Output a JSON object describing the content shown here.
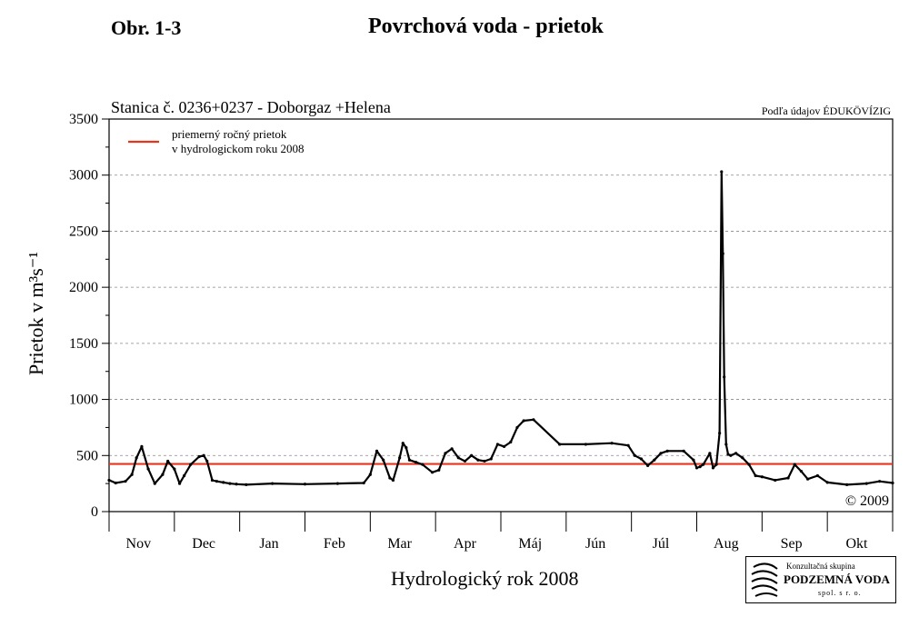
{
  "header": {
    "figure_label": "Obr. 1-3",
    "title": "Povrchová voda - prietok"
  },
  "chart_data": {
    "type": "line",
    "title": "Povrchová voda - prietok",
    "subtitle": "Stanica č. 0236+0237 - Doborgaz +Helena",
    "source_note": "Podľa údajov ÉDUKÖVÍZIG",
    "copyright": "© 2009",
    "ylabel": "Prietok v m³s⁻¹",
    "xlabel": "Hydrologický rok 2008",
    "ylim": [
      0,
      3500
    ],
    "yticks": [
      0,
      500,
      1000,
      1500,
      2000,
      2500,
      3000,
      3500
    ],
    "xlim": [
      0,
      12
    ],
    "months": [
      "Nov",
      "Dec",
      "Jan",
      "Feb",
      "Mar",
      "Apr",
      "Máj",
      "Jún",
      "Júl",
      "Aug",
      "Sep",
      "Okt"
    ],
    "grid": "dashed horizontal",
    "legend_position": "top-left",
    "legend": [
      {
        "label_line1": "priemerný ročný prietok",
        "label_line2": "v hydrologickom roku 2008",
        "color": "#e8341c"
      }
    ],
    "mean_flow": 425,
    "series": [
      {
        "color": "#000000",
        "x": [
          0.0,
          0.1,
          0.25,
          0.35,
          0.42,
          0.5,
          0.6,
          0.7,
          0.82,
          0.9,
          1.0,
          1.08,
          1.15,
          1.25,
          1.38,
          1.45,
          1.5,
          1.58,
          1.65,
          1.75,
          1.85,
          1.95,
          2.1,
          2.5,
          3.0,
          3.5,
          3.9,
          4.0,
          4.1,
          4.2,
          4.3,
          4.35,
          4.45,
          4.5,
          4.55,
          4.6,
          4.7,
          4.8,
          4.95,
          5.05,
          5.15,
          5.25,
          5.35,
          5.45,
          5.55,
          5.65,
          5.75,
          5.85,
          5.95,
          6.05,
          6.15,
          6.25,
          6.35,
          6.5,
          6.9,
          7.3,
          7.7,
          7.95,
          8.05,
          8.15,
          8.25,
          8.35,
          8.45,
          8.55,
          8.8,
          8.95,
          9.0,
          9.05,
          9.1,
          9.2,
          9.25,
          9.3,
          9.35,
          9.38,
          9.4,
          9.42,
          9.45,
          9.48,
          9.52,
          9.6,
          9.7,
          9.8,
          9.9,
          10.0,
          10.2,
          10.4,
          10.5,
          10.6,
          10.7,
          10.85,
          11.0,
          11.3,
          11.6,
          11.8,
          12.0
        ],
        "y": [
          280,
          255,
          270,
          330,
          480,
          580,
          380,
          250,
          330,
          450,
          380,
          250,
          320,
          420,
          490,
          500,
          450,
          280,
          270,
          260,
          250,
          245,
          240,
          250,
          245,
          250,
          255,
          330,
          540,
          460,
          300,
          280,
          480,
          610,
          570,
          460,
          440,
          420,
          350,
          370,
          520,
          560,
          480,
          450,
          500,
          460,
          450,
          470,
          600,
          580,
          620,
          750,
          810,
          820,
          600,
          600,
          610,
          590,
          500,
          470,
          410,
          460,
          520,
          540,
          540,
          460,
          390,
          400,
          420,
          520,
          390,
          420,
          700,
          3030,
          2300,
          1200,
          600,
          510,
          500,
          520,
          480,
          420,
          320,
          310,
          280,
          300,
          420,
          360,
          290,
          320,
          260,
          240,
          250,
          270,
          255
        ]
      }
    ]
  },
  "logo": {
    "line1": "Konzultačná skupina",
    "line2": "PODZEMNÁ VODA",
    "line3": "spol. s r. o."
  }
}
